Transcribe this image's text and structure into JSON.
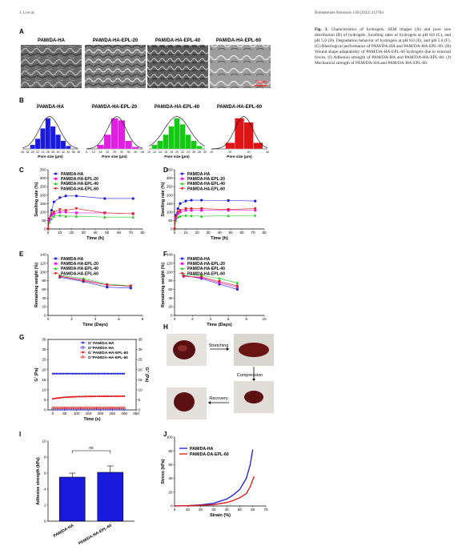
{
  "header": {
    "left": "J. Li et al.",
    "right": "Biomaterials Advances 136 (2022) 212784"
  },
  "caption": {
    "label": "Fig. 3.",
    "text": "Characteristics of hydrogels. SEM images (A) and pore size distribution (B) of hydrogels. Swelling rates of hydrogels at pH 8.0 (C), and pH 5.0 (D). Degradation behavior of hydrogels at pH 8.0 (E), and pH 5.0 (F). (G) Rheological performance of PAM/DA-HA and PAM/DA-HA-EPL-60. (H) Wound shape adaptability of PAM/DA-HA-EPL-60 hydrogels due to external forces. (I) Adhesion strength of PAM/DA-HA and PAM/DA-HA-EPL-60. (J) Mechanical strength of PAM/DA-HA and PAM/DA-HA-EPL-60."
  },
  "panels": {
    "A": {
      "label": "A",
      "titles": [
        "PAM/DA-HA",
        "PAM/DA-HA-EPL-20",
        "PAM/DA-HA-EPL-40",
        "PAM/DA-HA-EPL-60"
      ],
      "scalebar": "50 μm"
    },
    "B": {
      "label": "B"
    },
    "H": {
      "label": "H",
      "stretching": "Stretching",
      "compression": "Compression",
      "recovery": "Recovery"
    }
  },
  "colors": {
    "haBlue": "#1a1adf",
    "epl20": "#e020e0",
    "epl40": "#14c814",
    "epl60": "#e01414",
    "purple": "#7b2bd6"
  },
  "chart_data": [
    {
      "id": "B1",
      "type": "bar",
      "title": "PAM/DA-HA",
      "xlabel": "Pore size (μm)",
      "color": "#1a1adf",
      "x_ticks": [
        "16",
        "18",
        "20",
        "22",
        "24",
        "26",
        "28",
        "30",
        "32",
        "34",
        "36",
        "38"
      ],
      "bins": [
        20,
        22,
        24,
        26,
        28,
        30,
        32,
        34
      ],
      "values": [
        4,
        10,
        20,
        30,
        22,
        14,
        8,
        3
      ],
      "ylim": [
        0,
        32
      ]
    },
    {
      "id": "B2",
      "type": "bar",
      "title": "PAM/DA-HA-EPL-20",
      "xlabel": "Pore size (μm)",
      "color": "#e020e0",
      "x_ticks": [
        "5",
        "10",
        "15",
        "20",
        "25",
        "30",
        "35",
        "40",
        "45"
      ],
      "bins": [
        15,
        20,
        25,
        30,
        35,
        40
      ],
      "values": [
        4,
        14,
        30,
        28,
        8,
        2
      ],
      "ylim": [
        0,
        32
      ]
    },
    {
      "id": "B3",
      "type": "bar",
      "title": "PAM/DA-HA-EPL-40",
      "xlabel": "Pore size (μm)",
      "color": "#14c814",
      "x_ticks": [
        "10",
        "12",
        "14",
        "16",
        "18",
        "20",
        "22",
        "24",
        "26",
        "28",
        "30"
      ],
      "bins": [
        12,
        14,
        16,
        18,
        20,
        22,
        24,
        26,
        28
      ],
      "values": [
        4,
        8,
        14,
        22,
        30,
        24,
        14,
        8,
        3
      ],
      "ylim": [
        0,
        32
      ]
    },
    {
      "id": "B4",
      "type": "bar",
      "title": "PAM/DA-HA-EPL-60",
      "xlabel": "Pore size (μm)",
      "color": "#e01414",
      "x_ticks": [
        "10",
        "20",
        "30",
        "40"
      ],
      "bins": [
        20,
        25,
        30,
        35
      ],
      "values": [
        6,
        30,
        26,
        6
      ],
      "ylim": [
        0,
        32
      ]
    },
    {
      "id": "C",
      "type": "line",
      "xlabel": "Time (h)",
      "ylabel": "Swelling rate (%)",
      "xlim": [
        0,
        80
      ],
      "ylim": [
        0,
        350
      ],
      "x_ticks": [
        0,
        10,
        20,
        30,
        40,
        50,
        60,
        70,
        80
      ],
      "y_ticks": [
        0,
        50,
        100,
        150,
        200,
        250,
        300,
        350
      ],
      "legend": "top-left",
      "x": [
        0,
        1,
        3,
        5,
        10,
        15,
        24,
        48,
        72
      ],
      "series": [
        {
          "name": "PAM/DA-HA",
          "values": [
            0,
            60,
            110,
            160,
            185,
            195,
            195,
            180,
            180
          ],
          "color": "#1a1adf",
          "marker": "circle"
        },
        {
          "name": "PAM/DA-HA-EPL-20",
          "values": [
            0,
            50,
            80,
            90,
            100,
            100,
            95,
            95,
            90
          ],
          "color": "#e020e0",
          "marker": "square"
        },
        {
          "name": "PAM/DA-HA-EPL-40",
          "values": [
            0,
            40,
            60,
            75,
            80,
            75,
            75,
            70,
            70
          ],
          "color": "#14c814",
          "marker": "triangle"
        },
        {
          "name": "PAM/DA-HA-EPL-60",
          "values": [
            0,
            60,
            90,
            100,
            115,
            110,
            120,
            95,
            90
          ],
          "color": "#e01414",
          "marker": "dtriangle"
        }
      ]
    },
    {
      "id": "D",
      "type": "line",
      "xlabel": "Time (h)",
      "ylabel": "Swelling rate (%)",
      "xlim": [
        0,
        80
      ],
      "ylim": [
        0,
        350
      ],
      "x_ticks": [
        0,
        10,
        20,
        30,
        40,
        50,
        60,
        70,
        80
      ],
      "y_ticks": [
        0,
        50,
        100,
        150,
        200,
        250,
        300,
        350
      ],
      "legend": "top-left",
      "x": [
        0,
        1,
        3,
        5,
        10,
        15,
        24,
        48,
        72
      ],
      "series": [
        {
          "name": "PAM/DA-HA",
          "values": [
            0,
            80,
            120,
            150,
            165,
            170,
            170,
            168,
            165
          ],
          "color": "#1a1adf",
          "marker": "circle"
        },
        {
          "name": "PAM/DA-HA-EPL-20",
          "values": [
            0,
            60,
            90,
            100,
            110,
            110,
            110,
            110,
            110
          ],
          "color": "#e020e0",
          "marker": "square"
        },
        {
          "name": "PAM/DA-HA-EPL-40",
          "values": [
            0,
            50,
            70,
            75,
            80,
            78,
            75,
            78,
            80
          ],
          "color": "#14c814",
          "marker": "triangle"
        },
        {
          "name": "PAM/DA-HA-EPL-60",
          "values": [
            0,
            70,
            100,
            110,
            120,
            120,
            120,
            115,
            120
          ],
          "color": "#e01414",
          "marker": "dtriangle"
        }
      ]
    },
    {
      "id": "E",
      "type": "line",
      "xlabel": "Time (Days)",
      "ylabel": "Remaining weight (%)",
      "xlim": [
        0,
        8
      ],
      "ylim": [
        0,
        140
      ],
      "x_ticks": [
        0,
        2,
        4,
        6,
        8
      ],
      "y_ticks": [
        0,
        20,
        40,
        60,
        80,
        100,
        120,
        140
      ],
      "legend": "top-left",
      "x": [
        1,
        3,
        5,
        7
      ],
      "series": [
        {
          "name": "PAM/DA-HA",
          "values": [
            88,
            78,
            65,
            63
          ],
          "color": "#1a1adf",
          "marker": "circle"
        },
        {
          "name": "PAM/DA-HA-EPL-20",
          "values": [
            90,
            82,
            70,
            68
          ],
          "color": "#e020e0",
          "marker": "square"
        },
        {
          "name": "PAM/DA-HA-EPL-40",
          "values": [
            92,
            85,
            72,
            68
          ],
          "color": "#14c814",
          "marker": "triangle"
        },
        {
          "name": "PAM/DA-HA-EPL-60",
          "values": [
            90,
            80,
            70,
            67
          ],
          "color": "#e01414",
          "marker": "dtriangle"
        }
      ]
    },
    {
      "id": "F",
      "type": "line",
      "xlabel": "Time (Days)",
      "ylabel": "Remaining weight (%)",
      "xlim": [
        0,
        10
      ],
      "ylim": [
        0,
        140
      ],
      "x_ticks": [
        0,
        2,
        4,
        6,
        8,
        10
      ],
      "y_ticks": [
        0,
        20,
        40,
        60,
        80,
        100,
        120,
        140
      ],
      "legend": "top-left",
      "x": [
        1,
        3,
        5,
        7
      ],
      "series": [
        {
          "name": "PAM/DA-HA",
          "values": [
            92,
            85,
            72,
            60
          ],
          "color": "#1a1adf",
          "marker": "circle"
        },
        {
          "name": "PAM/DA-HA-EPL-20",
          "values": [
            90,
            87,
            75,
            65
          ],
          "color": "#e020e0",
          "marker": "square"
        },
        {
          "name": "PAM/DA-HA-EPL-40",
          "values": [
            94,
            92,
            85,
            75
          ],
          "color": "#14c814",
          "marker": "triangle"
        },
        {
          "name": "PAM/DA-HA-EPL-60",
          "values": [
            90,
            88,
            78,
            68
          ],
          "color": "#e01414",
          "marker": "dtriangle"
        }
      ]
    },
    {
      "id": "G",
      "type": "line",
      "xlabel": "Time (s)",
      "ylabel_left": "G' (Pa)",
      "ylabel_right": "G\" (Pa)",
      "xlim": [
        -20,
        350
      ],
      "ylim": [
        0,
        35
      ],
      "x_ticks": [
        0,
        50,
        100,
        150,
        200,
        250,
        300,
        350
      ],
      "y_ticks": [
        0,
        5,
        10,
        15,
        20,
        25,
        30,
        35
      ],
      "legend": "top-right",
      "series": [
        {
          "name": "G' PAM/DA-HA",
          "value": 18,
          "color": "#1a1adf",
          "marker": "filled"
        },
        {
          "name": "G\"PAM/DA-HA",
          "value": 0.4,
          "color": "#1a1adf",
          "marker": "open"
        },
        {
          "name": "G' PAM/DA-HA-EPL-60",
          "start": 5.5,
          "end": 6.8,
          "color": "#e01414",
          "marker": "filled"
        },
        {
          "name": "G\"PAM/DA-HA-EPL-60",
          "value": 1.0,
          "color": "#e01414",
          "marker": "open"
        }
      ]
    },
    {
      "id": "I",
      "type": "bar",
      "ylabel": "Adhesive strength (kPa)",
      "categories": [
        "PAM/DA-HA",
        "PAM/DA-HA-EPL-60"
      ],
      "values": [
        5.5,
        6.1
      ],
      "errors": [
        0.5,
        0.8
      ],
      "ylim": [
        0,
        10
      ],
      "y_ticks": [
        0,
        2,
        4,
        6,
        8,
        10
      ],
      "significance": "ns",
      "color": "#1a1adf"
    },
    {
      "id": "J",
      "type": "line",
      "xlabel": "Strain (%)",
      "ylabel": "Stress (kPa)",
      "xlim": [
        0,
        70
      ],
      "ylim": [
        0,
        100
      ],
      "x_ticks": [
        0,
        10,
        20,
        30,
        40,
        50,
        60,
        70
      ],
      "y_ticks": [
        0,
        20,
        40,
        60,
        80,
        100
      ],
      "legend": "top-left",
      "series": [
        {
          "name": "PAM/DA-HA",
          "x": [
            0,
            10,
            20,
            30,
            40,
            45,
            50,
            55,
            58,
            60
          ],
          "values": [
            0,
            0.5,
            1.5,
            4,
            10,
            16,
            24,
            40,
            60,
            82
          ],
          "color": "#1a1adf"
        },
        {
          "name": "PAM/DA-DA-EPL-60",
          "x": [
            0,
            10,
            20,
            30,
            40,
            45,
            50,
            55,
            58,
            61
          ],
          "values": [
            0,
            0.3,
            1,
            2,
            5,
            8,
            12,
            18,
            28,
            43
          ],
          "color": "#e01414"
        }
      ]
    }
  ]
}
